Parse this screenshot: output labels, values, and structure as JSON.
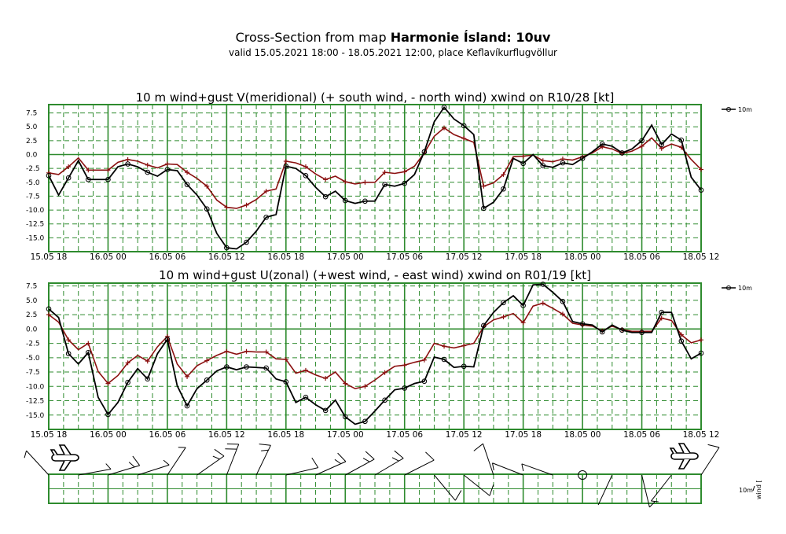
{
  "header": {
    "title_prefix": "Cross-Section from map ",
    "title_bold": "Harmonie Ísland: 10uv",
    "subtitle": "valid 15.05.2021 18:00 - 18.05.2021 12:00, place Keflavíkurflugvöllur"
  },
  "colors": {
    "grid": "#2e8b2e",
    "series_10m": "#000000",
    "series_gust": "#8b1010"
  },
  "x_tick_labels": [
    "15.05 18",
    "16.05 00",
    "16.05 06",
    "16.05 12",
    "16.05 18",
    "17.05 00",
    "17.05 06",
    "17.05 12",
    "17.05 18",
    "18.05 00",
    "18.05 06",
    "18.05 12"
  ],
  "legend": {
    "series_label": "10m"
  },
  "chart_data": [
    {
      "type": "line",
      "title": "10 m wind+gust V(meridional) (+ south wind, - north wind) xwind on R10/28 [kt]",
      "x_unit": "hours since 15.05 18:00",
      "xlim": [
        0,
        66
      ],
      "ylim": [
        -17.5,
        9
      ],
      "yticks": [
        7.5,
        5.0,
        2.5,
        0.0,
        -2.5,
        -5.0,
        -7.5,
        -10.0,
        -12.5,
        -15.0
      ],
      "ytick_labels": [
        "7.5",
        "5.0",
        "2.5",
        "0.0",
        "-2.5",
        "-5.0",
        "-7.5",
        "-10.0",
        "-12.5",
        "-15.0"
      ],
      "series": [
        {
          "name": "10m",
          "marker": "circle",
          "values": [
            -3.8,
            -7.3,
            -4.2,
            -1.1,
            -4.5,
            -4.5,
            -4.5,
            -2.2,
            -1.7,
            -2.2,
            -3.2,
            -3.9,
            -2.7,
            -2.9,
            -5.4,
            -7.3,
            -9.8,
            -14.2,
            -16.8,
            -17.0,
            -15.8,
            -13.8,
            -11.3,
            -10.8,
            -2.1,
            -2.5,
            -3.8,
            -5.9,
            -7.6,
            -6.6,
            -8.3,
            -8.8,
            -8.4,
            -8.4,
            -5.4,
            -5.7,
            -5.2,
            -3.6,
            0.5,
            5.9,
            8.5,
            6.4,
            5.2,
            3.6,
            -9.7,
            -8.6,
            -6.2,
            -0.7,
            -1.6,
            0.0,
            -2.0,
            -2.3,
            -1.5,
            -1.8,
            -0.7,
            0.5,
            1.9,
            1.5,
            0.3,
            1.0,
            2.5,
            5.3,
            1.8,
            3.7,
            2.6,
            -4.1,
            -6.4
          ]
        },
        {
          "name": "gust",
          "marker": "plus",
          "values": [
            -3.3,
            -3.6,
            -2.2,
            -0.6,
            -2.8,
            -2.8,
            -2.8,
            -1.4,
            -0.9,
            -1.2,
            -1.9,
            -2.4,
            -1.7,
            -1.8,
            -3.2,
            -4.3,
            -5.7,
            -8.2,
            -9.5,
            -9.7,
            -9.1,
            -8.1,
            -6.6,
            -6.2,
            -1.2,
            -1.5,
            -2.2,
            -3.5,
            -4.5,
            -3.9,
            -4.9,
            -5.3,
            -5.0,
            -5.0,
            -3.2,
            -3.4,
            -3.1,
            -2.1,
            0.3,
            3.3,
            4.8,
            3.6,
            2.9,
            2.2,
            -5.7,
            -5.1,
            -3.6,
            -0.4,
            -0.3,
            -0.1,
            -1.1,
            -1.3,
            -0.8,
            -1.0,
            -0.4,
            0.3,
            1.4,
            1.0,
            0.2,
            0.6,
            1.5,
            3.0,
            1.1,
            1.9,
            1.3,
            -0.9,
            -2.7
          ]
        }
      ]
    },
    {
      "type": "line",
      "title": "10 m wind+gust U(zonal) (+west wind, - east wind) xwind on R01/19 [kt]",
      "x_unit": "hours since 15.05 18:00",
      "xlim": [
        0,
        66
      ],
      "ylim": [
        -17.5,
        8
      ],
      "yticks": [
        7.5,
        5.0,
        2.5,
        0.0,
        -2.5,
        -5.0,
        -7.5,
        -10.0,
        -12.5,
        -15.0
      ],
      "ytick_labels": [
        "7.5",
        "5.0",
        "2.5",
        "0.0",
        "-2.5",
        "-5.0",
        "-7.5",
        "-10.0",
        "-12.5",
        "-15.0"
      ],
      "series": [
        {
          "name": "10m",
          "marker": "circle",
          "values": [
            3.5,
            2.0,
            -4.3,
            -6.1,
            -4.1,
            -11.9,
            -14.9,
            -12.8,
            -9.3,
            -6.9,
            -8.7,
            -4.3,
            -1.8,
            -9.9,
            -13.4,
            -10.4,
            -8.9,
            -7.3,
            -6.6,
            -7.1,
            -6.6,
            -6.7,
            -6.8,
            -8.7,
            -9.2,
            -12.8,
            -11.9,
            -13.2,
            -14.2,
            -12.4,
            -15.3,
            -16.6,
            -16.1,
            -14.3,
            -12.4,
            -10.6,
            -10.3,
            -9.5,
            -9.1,
            -4.9,
            -5.3,
            -6.7,
            -6.5,
            -6.6,
            0.6,
            2.9,
            4.6,
            5.8,
            4.1,
            7.7,
            7.8,
            6.4,
            4.8,
            1.3,
            0.9,
            0.7,
            -0.5,
            0.7,
            -0.2,
            -0.6,
            -0.6,
            -0.6,
            2.9,
            2.9,
            -2.1,
            -5.2,
            -4.2
          ]
        },
        {
          "name": "gust",
          "marker": "plus",
          "values": [
            2.5,
            1.2,
            -1.9,
            -3.6,
            -2.5,
            -7.4,
            -9.5,
            -8.1,
            -5.9,
            -4.6,
            -5.6,
            -3.1,
            -1.3,
            -6.1,
            -8.3,
            -6.4,
            -5.5,
            -4.6,
            -3.9,
            -4.4,
            -3.9,
            -4.0,
            -4.0,
            -5.2,
            -5.3,
            -7.7,
            -7.2,
            -8.0,
            -8.6,
            -7.5,
            -9.5,
            -10.4,
            -10.0,
            -8.9,
            -7.6,
            -6.5,
            -6.3,
            -5.8,
            -5.4,
            -2.5,
            -3.0,
            -3.3,
            -2.9,
            -2.5,
            0.4,
            1.6,
            2.1,
            2.7,
            1.1,
            4.0,
            4.5,
            3.6,
            2.6,
            1.0,
            0.7,
            0.5,
            -0.3,
            0.5,
            -0.1,
            -0.4,
            -0.4,
            -0.4,
            1.9,
            1.5,
            -1.0,
            -2.4,
            -1.9
          ]
        }
      ]
    }
  ],
  "wind_panel": {
    "legend_label": "10m",
    "legend_axis_label": "wind ["
  }
}
